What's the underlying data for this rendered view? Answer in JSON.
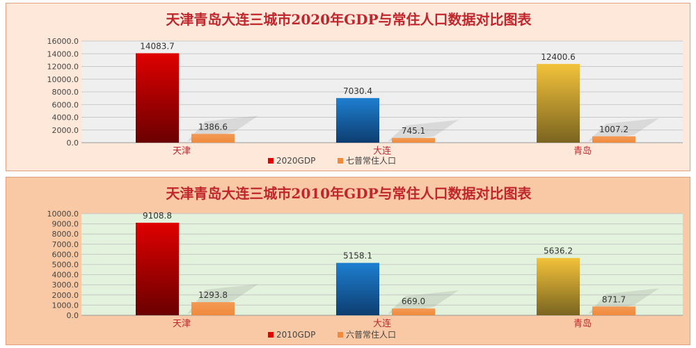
{
  "colors": {
    "gdp_tianjin": "#e00000",
    "gdp_dalian": "#1e7fd0",
    "gdp_qingdao": "#f2c23a",
    "population": "#f08a3c",
    "plot_bg_2020": "#efefef",
    "plot_bg_2010": "#e3f2dc"
  },
  "chart_data": [
    {
      "type": "bar",
      "title": "天津青岛大连三城市2020年GDP与常住人口数据对比图表",
      "categories": [
        "天津",
        "大连",
        "青岛"
      ],
      "series": [
        {
          "name": "2020GDP",
          "values": [
            14083.7,
            7030.4,
            12400.6
          ],
          "labels": [
            "14083.7",
            "7030.4",
            "12400.6"
          ]
        },
        {
          "name": "七普常住人口",
          "values": [
            1386.6,
            745.1,
            1007.2
          ],
          "labels": [
            "1386.6",
            "745.1",
            "1007.2"
          ]
        }
      ],
      "ylim": [
        0,
        16000
      ],
      "yticks": [
        "0.0",
        "2000.0",
        "4000.0",
        "6000.0",
        "8000.0",
        "10000.0",
        "12000.0",
        "14000.0",
        "16000.0"
      ],
      "grid": true,
      "legend": "bottom"
    },
    {
      "type": "bar",
      "title": "天津青岛大连三城市2010年GDP与常住人口数据对比图表",
      "categories": [
        "天津",
        "大连",
        "青岛"
      ],
      "series": [
        {
          "name": "2010GDP",
          "values": [
            9108.8,
            5158.1,
            5636.2
          ],
          "labels": [
            "9108.8",
            "5158.1",
            "5636.2"
          ]
        },
        {
          "name": "六普常住人口",
          "values": [
            1293.8,
            669.0,
            871.7
          ],
          "labels": [
            "1293.8",
            "669.0",
            "871.7"
          ]
        }
      ],
      "ylim": [
        0,
        10000
      ],
      "yticks": [
        "0.0",
        "1000.0",
        "2000.0",
        "3000.0",
        "4000.0",
        "5000.0",
        "6000.0",
        "7000.0",
        "8000.0",
        "9000.0",
        "10000.0"
      ],
      "grid": true,
      "legend": "bottom"
    }
  ]
}
